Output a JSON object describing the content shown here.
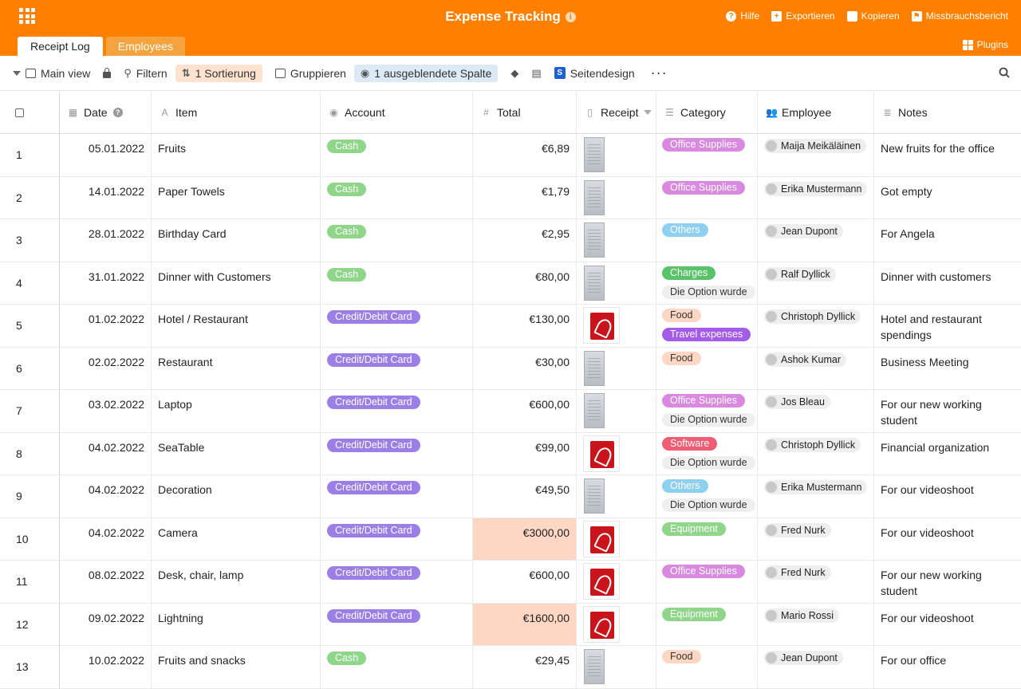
{
  "app": {
    "title": "Expense Tracking",
    "header_actions": [
      {
        "label": "Hilfe",
        "icon": "help-icon"
      },
      {
        "label": "Exportieren",
        "icon": "export-icon"
      },
      {
        "label": "Kopieren",
        "icon": "copy-icon"
      },
      {
        "label": "Missbrauchsbericht",
        "icon": "flag-icon"
      }
    ],
    "tabs": [
      {
        "label": "Receipt Log",
        "active": true
      },
      {
        "label": "Employees",
        "active": false
      }
    ],
    "plugins_label": "Plugins",
    "accent_color": "#ff8000"
  },
  "toolbar": {
    "view": "Main view",
    "filter": "Filtern",
    "sort": "1 Sortierung",
    "group": "Gruppieren",
    "hidden": "1 ausgeblendete Spalte",
    "page_design": "Seitendesign",
    "more": "···"
  },
  "columns": {
    "date": "Date",
    "item": "Item",
    "account": "Account",
    "total": "Total",
    "receipt": "Receipt",
    "category": "Category",
    "employee": "Employee",
    "notes": "Notes"
  },
  "rows": [
    {
      "num": "1",
      "date": "05.01.2022",
      "item": "Fruits",
      "account": "Cash",
      "total": "€6,89",
      "receipt": "image",
      "categories": [
        "Office Supplies"
      ],
      "employee": "Maija Meikäläinen",
      "notes": "New fruits for the office"
    },
    {
      "num": "2",
      "date": "14.01.2022",
      "item": "Paper Towels",
      "account": "Cash",
      "total": "€1,79",
      "receipt": "image",
      "categories": [
        "Office Supplies"
      ],
      "employee": "Erika Mustermann",
      "notes": "Got empty"
    },
    {
      "num": "3",
      "date": "28.01.2022",
      "item": "Birthday Card",
      "account": "Cash",
      "total": "€2,95",
      "receipt": "image",
      "categories": [
        "Others"
      ],
      "employee": "Jean Dupont",
      "notes": "For Angela"
    },
    {
      "num": "4",
      "date": "31.01.2022",
      "item": "Dinner with Customers",
      "account": "Cash",
      "total": "€80,00",
      "receipt": "image",
      "categories": [
        "Charges",
        "Die Option wurde"
      ],
      "employee": "Ralf Dyllick",
      "notes": "Dinner with customers"
    },
    {
      "num": "5",
      "date": "01.02.2022",
      "item": "Hotel / Restaurant",
      "account": "Credit/Debit Card",
      "total": "€130,00",
      "receipt": "pdf",
      "categories": [
        "Food",
        "Travel expenses"
      ],
      "employee": "Christoph Dyllick",
      "notes": "Hotel and restaurant spendings"
    },
    {
      "num": "6",
      "date": "02.02.2022",
      "item": "Restaurant",
      "account": "Credit/Debit Card",
      "total": "€30,00",
      "receipt": "image",
      "categories": [
        "Food"
      ],
      "employee": "Ashok Kumar",
      "notes": "Business Meeting"
    },
    {
      "num": "7",
      "date": "03.02.2022",
      "item": "Laptop",
      "account": "Credit/Debit Card",
      "total": "€600,00",
      "receipt": "image",
      "categories": [
        "Office Supplies",
        "Die Option wurde"
      ],
      "employee": "Jos Bleau",
      "notes": "For our new working student"
    },
    {
      "num": "8",
      "date": "04.02.2022",
      "item": "SeaTable",
      "account": "Credit/Debit Card",
      "total": "€99,00",
      "receipt": "pdf",
      "categories": [
        "Software",
        "Die Option wurde"
      ],
      "employee": "Christoph Dyllick",
      "notes": "Financial organization"
    },
    {
      "num": "9",
      "date": "04.02.2022",
      "item": "Decoration",
      "account": "Credit/Debit Card",
      "total": "€49,50",
      "receipt": "image",
      "categories": [
        "Others",
        "Die Option wurde"
      ],
      "employee": "Erika Mustermann",
      "notes": "For our videoshoot"
    },
    {
      "num": "10",
      "date": "04.02.2022",
      "item": "Camera",
      "account": "Credit/Debit Card",
      "total": "€3000,00",
      "highlight": true,
      "receipt": "pdf",
      "categories": [
        "Equipment"
      ],
      "employee": "Fred Nurk",
      "notes": "For our videoshoot"
    },
    {
      "num": "11",
      "date": "08.02.2022",
      "item": "Desk, chair, lamp",
      "account": "Credit/Debit Card",
      "total": "€600,00",
      "receipt": "pdf",
      "categories": [
        "Office Supplies"
      ],
      "employee": "Fred Nurk",
      "notes": "For our new working student"
    },
    {
      "num": "12",
      "date": "09.02.2022",
      "item": "Lightning",
      "account": "Credit/Debit Card",
      "total": "€1600,00",
      "highlight": true,
      "receipt": "pdf",
      "categories": [
        "Equipment"
      ],
      "employee": "Mario Rossi",
      "notes": "For our videoshoot"
    },
    {
      "num": "13",
      "date": "10.02.2022",
      "item": "Fruits and snacks",
      "account": "Cash",
      "total": "€29,45",
      "receipt": "image",
      "categories": [
        "Food"
      ],
      "employee": "Jean Dupont",
      "notes": "For our office"
    }
  ],
  "account_colors": {
    "Cash": "#8fd68a",
    "Credit/Debit Card": "#9b7fe6"
  },
  "category_colors": {
    "Office Supplies": {
      "bg": "#d98ae0",
      "fg": "#ffffff"
    },
    "Others": {
      "bg": "#8ed0ef",
      "fg": "#ffffff"
    },
    "Charges": {
      "bg": "#59c36a",
      "fg": "#ffffff"
    },
    "Food": {
      "bg": "#fdd6c4",
      "fg": "#333333"
    },
    "Travel expenses": {
      "bg": "#a35be8",
      "fg": "#ffffff"
    },
    "Software": {
      "bg": "#ee5d73",
      "fg": "#ffffff"
    },
    "Equipment": {
      "bg": "#8fd68a",
      "fg": "#ffffff"
    },
    "Die Option wurde": {
      "bg": "#eeeeee",
      "fg": "#333333"
    }
  }
}
